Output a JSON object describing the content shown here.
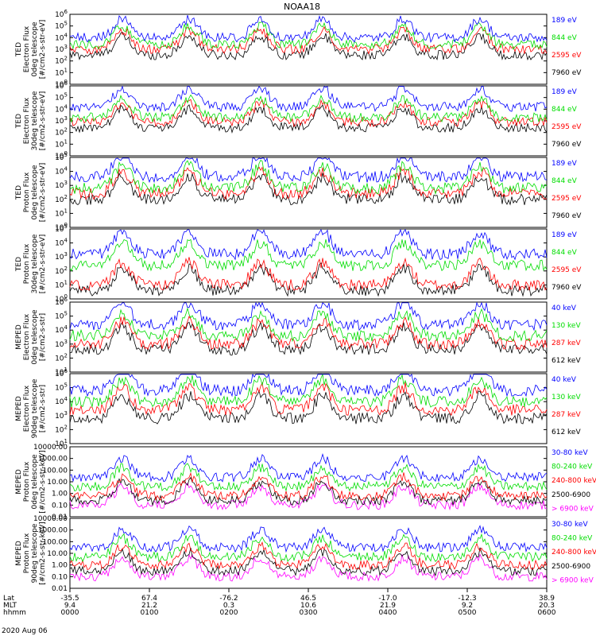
{
  "title": "NOAA18",
  "date": "2020 Aug 06",
  "colors": {
    "black": "#000000",
    "red": "#ff0000",
    "green": "#00dd00",
    "blue": "#0000ff",
    "magenta": "#ff00ff"
  },
  "x_axis": {
    "row_labels": [
      "Lat",
      "MLT",
      "hhmm"
    ],
    "ticks": [
      {
        "lat": "-35.5",
        "mlt": "9.4",
        "hhmm": "0000"
      },
      {
        "lat": "67.4",
        "mlt": "21.2",
        "hhmm": "0100"
      },
      {
        "lat": "-76.2",
        "mlt": "0.3",
        "hhmm": "0200"
      },
      {
        "lat": "46.5",
        "mlt": "10.6",
        "hhmm": "0300"
      },
      {
        "lat": "-17.0",
        "mlt": "21.9",
        "hhmm": "0400"
      },
      {
        "lat": "-12.3",
        "mlt": "9.2",
        "hhmm": "0500"
      },
      {
        "lat": "38.9",
        "mlt": "20.3",
        "hhmm": "0600"
      }
    ]
  },
  "chart_data": [
    {
      "type": "line",
      "panel": "ted-electron-0deg",
      "ylabel": [
        "TED",
        "Electron Flux",
        "0deg telescope",
        "[#/cm2-s-str-eV]"
      ],
      "yscale": "log",
      "ylim": [
        1,
        1000000
      ],
      "ytick_labels": [
        "10^0",
        "10^1",
        "10^2",
        "10^3",
        "10^4",
        "10^5",
        "10^6"
      ],
      "series": [
        {
          "name": "7960 eV",
          "color": "#000000",
          "level": 2.5
        },
        {
          "name": "2595 eV",
          "color": "#ff0000",
          "level": 3.0
        },
        {
          "name": "844 eV",
          "color": "#00dd00",
          "level": 3.4
        },
        {
          "name": "189 eV",
          "color": "#0000ff",
          "level": 4.0
        }
      ]
    },
    {
      "type": "line",
      "panel": "ted-electron-30deg",
      "ylabel": [
        "TED",
        "Electron Flux",
        "30deg telescope",
        "[#/cm2-s-str-eV]"
      ],
      "yscale": "log",
      "ylim": [
        1,
        1000000
      ],
      "ytick_labels": [
        "10^0",
        "10^1",
        "10^2",
        "10^3",
        "10^4",
        "10^5",
        "10^6"
      ],
      "series": [
        {
          "name": "7960 eV",
          "color": "#000000",
          "level": 2.4
        },
        {
          "name": "2595 eV",
          "color": "#ff0000",
          "level": 2.9
        },
        {
          "name": "844 eV",
          "color": "#00dd00",
          "level": 3.3
        },
        {
          "name": "189 eV",
          "color": "#0000ff",
          "level": 4.2
        }
      ]
    },
    {
      "type": "line",
      "panel": "ted-proton-0deg",
      "ylabel": [
        "TED",
        "Proton Flux",
        "0deg telescope",
        "[#/cm2-s-str-eV]"
      ],
      "yscale": "log",
      "ylim": [
        1,
        100000
      ],
      "ytick_labels": [
        "10^0",
        "10^1",
        "10^2",
        "10^3",
        "10^4",
        "10^5"
      ],
      "series": [
        {
          "name": "7960 eV",
          "color": "#000000",
          "level": 2.0
        },
        {
          "name": "2595 eV",
          "color": "#ff0000",
          "level": 2.4
        },
        {
          "name": "844 eV",
          "color": "#00dd00",
          "level": 2.8
        },
        {
          "name": "189 eV",
          "color": "#0000ff",
          "level": 3.6
        }
      ]
    },
    {
      "type": "line",
      "panel": "ted-proton-30deg",
      "ylabel": [
        "TED",
        "Proton Flux",
        "30deg telescope",
        "[#/cm2-s-str-eV]"
      ],
      "yscale": "log",
      "ylim": [
        1,
        100000
      ],
      "ytick_labels": [
        "10^0",
        "10^1",
        "10^2",
        "10^3",
        "10^4",
        "10^5"
      ],
      "series": [
        {
          "name": "7960 eV",
          "color": "#000000",
          "level": 0.6
        },
        {
          "name": "2595 eV",
          "color": "#ff0000",
          "level": 1.0
        },
        {
          "name": "844 eV",
          "color": "#00dd00",
          "level": 2.4
        },
        {
          "name": "189 eV",
          "color": "#0000ff",
          "level": 3.2
        }
      ]
    },
    {
      "type": "line",
      "panel": "meped-electron-0deg",
      "ylabel": [
        "MEPED",
        "Electron Flux",
        "0deg telescope",
        "[#/cm2-s-str]"
      ],
      "yscale": "log",
      "ylim": [
        10,
        1000000
      ],
      "ytick_labels": [
        "10^1",
        "10^2",
        "10^3",
        "10^4",
        "10^5",
        "10^6"
      ],
      "series": [
        {
          "name": "612 keV",
          "color": "#000000",
          "level": 2.6
        },
        {
          "name": "287 keV",
          "color": "#ff0000",
          "level": 3.0
        },
        {
          "name": "130 keV",
          "color": "#00dd00",
          "level": 3.6
        },
        {
          "name": "40 keV",
          "color": "#0000ff",
          "level": 4.4
        }
      ]
    },
    {
      "type": "line",
      "panel": "meped-electron-90deg",
      "ylabel": [
        "MEPED",
        "Electron Flux",
        "90deg telescope",
        "[#/cm2-s-str]"
      ],
      "yscale": "log",
      "ylim": [
        10,
        1000000
      ],
      "ytick_labels": [
        "10^1",
        "10^2",
        "10^3",
        "10^4",
        "10^5",
        "10^6"
      ],
      "series": [
        {
          "name": "612 keV",
          "color": "#000000",
          "level": 2.8
        },
        {
          "name": "287 keV",
          "color": "#ff0000",
          "level": 3.4
        },
        {
          "name": "130 keV",
          "color": "#00dd00",
          "level": 4.0
        },
        {
          "name": "40 keV",
          "color": "#0000ff",
          "level": 4.8
        }
      ]
    },
    {
      "type": "line",
      "panel": "meped-proton-0deg",
      "ylabel": [
        "MEPED",
        "Proton Flux",
        "0deg telescope",
        "[#/cm2-s-str-keV]"
      ],
      "yscale": "log",
      "ylim": [
        0.01,
        10000
      ],
      "ytick_labels": [
        "0.01",
        "0.10",
        "1.00",
        "10.00",
        "100.00",
        "1000.00",
        "10000.00"
      ],
      "series": [
        {
          "name": "> 6900 keV",
          "color": "#ff00ff",
          "level": -1.0
        },
        {
          "name": "2500-6900",
          "color": "#000000",
          "level": -0.6
        },
        {
          "name": "240-800 keV",
          "color": "#ff0000",
          "level": -0.2
        },
        {
          "name": "80-240 keV",
          "color": "#00dd00",
          "level": 0.6
        },
        {
          "name": "30-80 keV",
          "color": "#0000ff",
          "level": 1.4
        }
      ]
    },
    {
      "type": "line",
      "panel": "meped-proton-90deg",
      "ylabel": [
        "MEPED",
        "Proton Flux",
        "90deg telescope",
        "[#/cm2-s-str-keV]"
      ],
      "yscale": "log",
      "ylim": [
        0.01,
        10000
      ],
      "ytick_labels": [
        "0.01",
        "0.10",
        "1.00",
        "10.00",
        "100.00",
        "1000.00",
        "10000.00"
      ],
      "series": [
        {
          "name": "> 6900 keV",
          "color": "#ff00ff",
          "level": -1.0
        },
        {
          "name": "2500-6900",
          "color": "#000000",
          "level": -0.5
        },
        {
          "name": "240-800 keV",
          "color": "#ff0000",
          "level": 0.0
        },
        {
          "name": "80-240 keV",
          "color": "#00dd00",
          "level": 0.7
        },
        {
          "name": "30-80 keV",
          "color": "#0000ff",
          "level": 1.5
        }
      ]
    }
  ]
}
